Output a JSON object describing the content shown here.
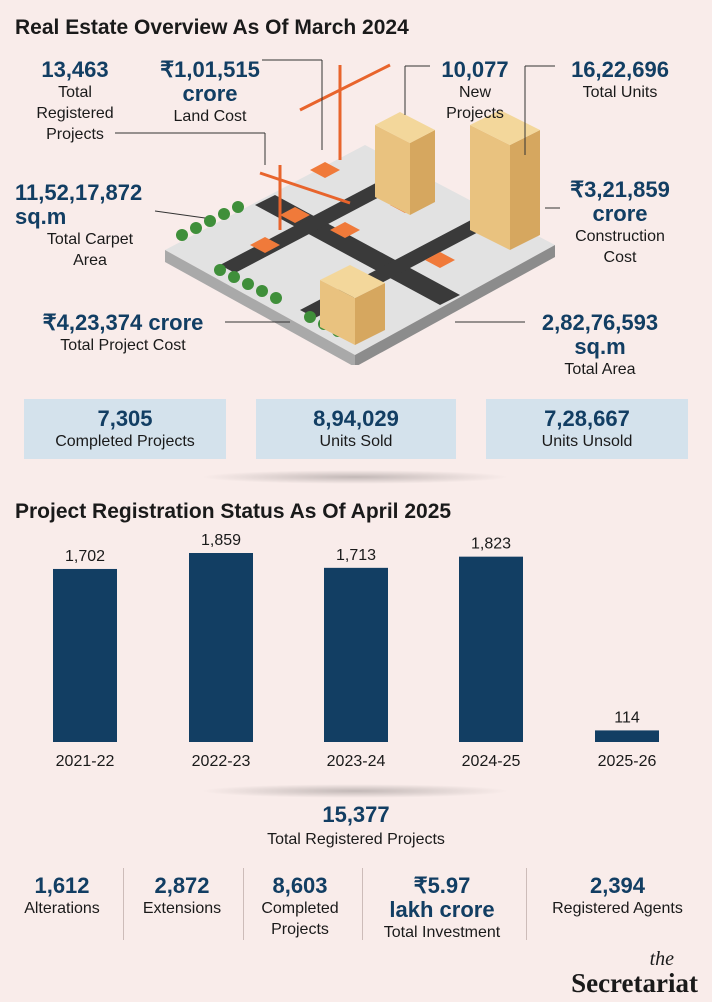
{
  "overview": {
    "title": "Real Estate Overview As Of March 2024",
    "registered": {
      "value": "13,463",
      "label1": "Total",
      "label2": "Registered",
      "label3": "Projects"
    },
    "land_cost": {
      "value1": "₹1,01,515",
      "value2": "crore",
      "label": "Land Cost"
    },
    "new_projects": {
      "value": "10,077",
      "label1": "New",
      "label2": "Projects"
    },
    "total_units": {
      "value": "16,22,696",
      "label": "Total Units"
    },
    "carpet_area": {
      "value1": "11,52,17,872",
      "value2": "sq.m",
      "label1": "Total Carpet",
      "label2": "Area"
    },
    "construction_cost": {
      "value1": "₹3,21,859",
      "value2": "crore",
      "label1": "Construction",
      "label2": "Cost"
    },
    "project_cost": {
      "value": "₹4,23,374 crore",
      "label": "Total Project Cost"
    },
    "total_area": {
      "value1": "2,82,76,593",
      "value2": "sq.m",
      "label": "Total Area"
    },
    "boxes": [
      {
        "value": "7,305",
        "label": "Completed Projects"
      },
      {
        "value": "8,94,029",
        "label": "Units Sold"
      },
      {
        "value": "7,28,667",
        "label": "Units Unsold"
      }
    ]
  },
  "registration": {
    "title": "Project Registration Status As Of April 2025",
    "total": {
      "value": "15,377",
      "label": "Total Registered Projects"
    },
    "stats": [
      {
        "value": "1,612",
        "label1": "Alterations",
        "label2": ""
      },
      {
        "value": "2,872",
        "label1": "Extensions",
        "label2": ""
      },
      {
        "value": "8,603",
        "label1": "Completed",
        "label2": "Projects"
      },
      {
        "value": "₹5.97",
        "value2": "lakh crore",
        "label1": "Total Investment",
        "label2": ""
      },
      {
        "value": "2,394",
        "label1": "Registered Agents",
        "label2": ""
      }
    ]
  },
  "chart_data": {
    "type": "bar",
    "title": "Project Registration Status As Of April 2025",
    "categories": [
      "2021-22",
      "2022-23",
      "2023-24",
      "2024-25",
      "2025-26"
    ],
    "values": [
      1702,
      1859,
      1713,
      1823,
      114
    ],
    "value_labels": [
      "1,702",
      "1,859",
      "1,713",
      "1,823",
      "114"
    ],
    "bar_color": "#123e63",
    "grid": false
  },
  "brand": {
    "line1": "the",
    "line2": "Secretariat"
  },
  "colors": {
    "accent": "#123e63",
    "background": "#f9ecea",
    "box": "#d4e2ec"
  }
}
